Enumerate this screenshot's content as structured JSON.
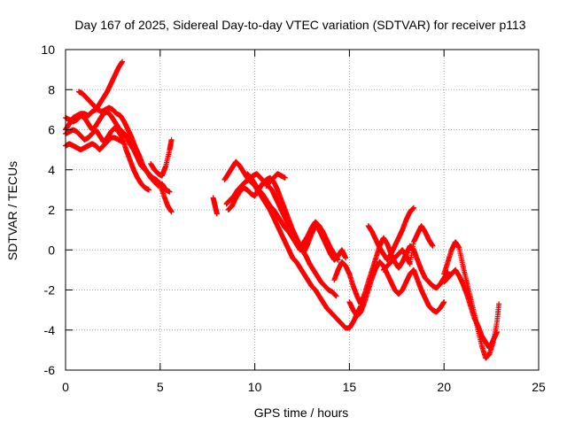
{
  "chart_data": {
    "type": "scatter",
    "title": "Day 167 of 2025, Sidereal Day-to-day VTEC variation (SDTVAR) for receiver p113",
    "xlabel": "GPS time / hours",
    "ylabel": "SDTVAR / TECUs",
    "xlim": [
      0,
      25
    ],
    "ylim": [
      -6,
      10
    ],
    "x_ticks": [
      0,
      5,
      10,
      15,
      20,
      25
    ],
    "y_ticks": [
      -6,
      -4,
      -2,
      0,
      2,
      4,
      6,
      8,
      10
    ],
    "x_tick_labels": [
      "0",
      "5",
      "10",
      "15",
      "20",
      "25"
    ],
    "y_tick_labels": [
      "-6",
      "-4",
      "-2",
      "0",
      "2",
      "4",
      "6",
      "8",
      "10"
    ],
    "grid": true,
    "marker": "+",
    "marker_color": "#ff0000",
    "series": [
      {
        "x": [
          0.0,
          0.2,
          0.4,
          0.6,
          0.8,
          1.0,
          1.2,
          1.4,
          1.6,
          1.8,
          2.0,
          2.2,
          2.4,
          2.6,
          2.8,
          3.0
        ],
        "y": [
          6.0,
          6.3,
          6.6,
          6.7,
          6.8,
          6.8,
          6.7,
          6.9,
          7.0,
          7.3,
          7.6,
          7.9,
          8.3,
          8.7,
          9.1,
          9.4
        ]
      },
      {
        "x": [
          0.7,
          0.9,
          1.1,
          1.3,
          1.5,
          1.7,
          1.9,
          2.1,
          2.3,
          2.5,
          2.7,
          2.9,
          3.1,
          3.3,
          3.5,
          3.7,
          3.9,
          4.1,
          4.3,
          4.5,
          4.7,
          4.9,
          5.1,
          5.3,
          5.5
        ],
        "y": [
          7.9,
          7.8,
          7.6,
          7.4,
          7.2,
          7.0,
          6.9,
          7.0,
          7.1,
          7.0,
          6.8,
          6.7,
          6.4,
          6.0,
          5.6,
          5.1,
          4.7,
          4.2,
          3.9,
          3.6,
          3.4,
          3.2,
          3.3,
          3.0,
          2.9
        ]
      },
      {
        "x": [
          0.0,
          0.2,
          0.4,
          0.6,
          0.8,
          1.0,
          1.2,
          1.4,
          1.6,
          1.8,
          2.0,
          2.2,
          2.4,
          2.6,
          2.8,
          3.0,
          3.2,
          3.4,
          3.6,
          3.8,
          4.0,
          4.2,
          4.4,
          4.6,
          4.8,
          5.0,
          5.2,
          5.4,
          5.6
        ],
        "y": [
          6.6,
          6.5,
          6.4,
          6.5,
          6.7,
          6.6,
          6.3,
          6.0,
          6.2,
          6.5,
          6.8,
          6.9,
          6.7,
          6.4,
          6.1,
          5.9,
          5.7,
          5.3,
          5.0,
          4.6,
          4.2,
          4.0,
          3.8,
          3.6,
          3.5,
          3.3,
          2.7,
          2.2,
          1.9
        ]
      },
      {
        "x": [
          0.0,
          0.2,
          0.4,
          0.6,
          0.8,
          1.0,
          1.2,
          1.4,
          1.6,
          1.8,
          2.0,
          2.2,
          2.4,
          2.6,
          2.8,
          3.0,
          3.2,
          3.4,
          3.6,
          3.8,
          4.0,
          4.2,
          4.4
        ],
        "y": [
          5.8,
          5.9,
          6.0,
          5.9,
          5.7,
          5.5,
          5.6,
          5.8,
          6.0,
          5.7,
          5.4,
          5.6,
          5.9,
          6.1,
          5.9,
          5.6,
          5.0,
          4.5,
          4.0,
          3.6,
          3.3,
          3.1,
          3.0
        ]
      },
      {
        "x": [
          0.0,
          0.2,
          0.4,
          0.6,
          0.8,
          1.0,
          1.2,
          1.4,
          1.6,
          1.8,
          2.0,
          2.2,
          2.4,
          2.6,
          2.8,
          3.0
        ],
        "y": [
          5.2,
          5.3,
          5.2,
          5.1,
          5.0,
          5.1,
          5.2,
          5.3,
          5.2,
          5.0,
          5.2,
          5.4,
          5.6,
          5.6,
          5.5,
          5.4
        ]
      },
      {
        "x": [
          4.5,
          4.7,
          4.9,
          5.1,
          5.3,
          5.5,
          5.6
        ],
        "y": [
          4.3,
          4.0,
          3.8,
          3.7,
          4.2,
          5.0,
          5.5
        ]
      },
      {
        "x": [
          7.8,
          7.9,
          8.0
        ],
        "y": [
          2.6,
          2.2,
          1.8
        ]
      },
      {
        "x": [
          8.4,
          8.6,
          8.8,
          9.0,
          9.2,
          9.4,
          9.6,
          9.8,
          10.0,
          10.2,
          10.4,
          10.6,
          10.8,
          11.0,
          11.2,
          11.4,
          11.6,
          11.8,
          12.0,
          12.2,
          12.4,
          12.6,
          12.8,
          13.0,
          13.2,
          13.4,
          13.6,
          13.8,
          14.0,
          14.2,
          14.4,
          14.6,
          14.8,
          15.0,
          15.2,
          15.4,
          15.6
        ],
        "y": [
          3.5,
          3.8,
          4.1,
          4.4,
          4.2,
          3.9,
          3.6,
          3.4,
          3.2,
          2.9,
          2.6,
          2.3,
          2.0,
          1.6,
          1.2,
          0.8,
          0.4,
          0.0,
          -0.4,
          -0.6,
          -0.9,
          -1.2,
          -1.5,
          -1.8,
          -2.0,
          -2.3,
          -2.6,
          -2.9,
          -3.1,
          -3.3,
          -3.5,
          -3.7,
          -3.9,
          -3.9,
          -3.6,
          -3.2,
          -2.8
        ]
      },
      {
        "x": [
          8.5,
          8.7,
          8.9,
          9.1,
          9.3,
          9.5,
          9.7,
          9.9,
          10.1,
          10.3,
          10.5,
          10.7,
          10.9,
          11.1,
          11.3,
          11.5,
          11.7,
          11.9,
          12.1,
          12.3,
          12.5,
          12.7,
          12.9,
          13.1,
          13.3,
          13.5,
          13.7,
          13.9,
          14.1,
          14.3
        ],
        "y": [
          2.3,
          2.5,
          2.7,
          3.0,
          3.2,
          3.4,
          3.5,
          3.7,
          3.8,
          3.6,
          3.4,
          3.2,
          3.0,
          2.6,
          2.2,
          1.8,
          1.4,
          1.0,
          0.6,
          0.3,
          0.0,
          -0.3,
          -0.7,
          -1.0,
          -1.3,
          -1.6,
          -1.8,
          -2.0,
          -2.1,
          -2.3
        ]
      },
      {
        "x": [
          8.6,
          8.8,
          9.0,
          9.2,
          9.4,
          9.6,
          9.8,
          10.0,
          10.2,
          10.4,
          10.6,
          10.8,
          11.0,
          11.2,
          11.4,
          11.6,
          11.8,
          12.0,
          12.2,
          12.4,
          12.6,
          12.8,
          13.0,
          13.2,
          13.4,
          13.6,
          13.8,
          14.0,
          14.2,
          14.4,
          14.6,
          14.8
        ],
        "y": [
          2.0,
          2.2,
          2.6,
          2.9,
          3.1,
          3.0,
          2.8,
          2.7,
          3.0,
          3.3,
          3.5,
          3.6,
          3.4,
          3.0,
          2.5,
          2.0,
          1.5,
          1.0,
          0.6,
          0.2,
          -0.1,
          0.3,
          0.8,
          1.2,
          1.0,
          0.6,
          0.2,
          -0.2,
          -0.5,
          -0.3,
          0.0,
          -0.4
        ]
      },
      {
        "x": [
          9.6,
          9.8,
          10.0,
          10.2,
          10.4,
          10.6,
          10.8,
          11.0,
          11.2,
          11.4,
          11.6,
          11.8,
          12.0,
          12.2,
          12.4,
          12.6,
          12.8,
          13.0,
          13.2,
          13.4,
          13.6,
          13.8,
          14.0,
          14.2,
          14.4
        ],
        "y": [
          3.8,
          3.6,
          3.3,
          3.0,
          2.8,
          2.5,
          2.2,
          2.0,
          1.7,
          1.4,
          1.1,
          0.9,
          0.6,
          0.3,
          0.0,
          0.4,
          0.7,
          1.1,
          1.4,
          1.2,
          0.9,
          0.5,
          0.1,
          -0.2,
          -0.5
        ]
      },
      {
        "x": [
          10.6,
          10.8,
          11.0,
          11.2,
          11.4,
          11.6
        ],
        "y": [
          3.2,
          3.4,
          3.6,
          3.8,
          3.7,
          3.6
        ]
      },
      {
        "x": [
          14.2,
          14.4,
          14.6,
          14.8,
          15.0,
          15.2,
          15.4,
          15.6,
          15.8,
          16.0,
          16.2,
          16.4,
          16.6,
          16.8,
          17.0,
          17.2,
          17.4,
          17.6,
          17.8,
          18.0,
          18.2,
          18.4,
          18.6,
          18.8,
          19.0,
          19.2,
          19.4,
          19.6,
          19.8,
          20.0,
          20.2
        ],
        "y": [
          -1.5,
          -1.0,
          -0.6,
          -0.8,
          -1.2,
          -1.8,
          -2.3,
          -2.7,
          -2.2,
          -1.6,
          -1.0,
          -0.4,
          0.2,
          0.6,
          0.3,
          -0.2,
          -0.6,
          -0.9,
          -0.6,
          -0.2,
          0.2,
          0.0,
          -0.5,
          -1.0,
          -1.4,
          -1.6,
          -1.8,
          -1.9,
          -1.7,
          -1.4,
          -1.1
        ]
      },
      {
        "x": [
          15.0,
          15.2,
          15.4,
          15.6,
          15.8,
          16.0,
          16.2,
          16.4,
          16.6,
          16.8,
          17.0,
          17.2,
          17.4,
          17.6,
          17.8,
          18.0,
          18.2,
          18.4,
          18.6,
          18.8,
          19.0,
          19.2,
          19.4,
          19.6,
          19.8,
          20.0
        ],
        "y": [
          -2.6,
          -3.0,
          -3.3,
          -3.1,
          -2.6,
          -2.0,
          -1.4,
          -0.9,
          -0.6,
          -0.8,
          -1.2,
          -1.6,
          -2.0,
          -2.2,
          -2.0,
          -1.6,
          -1.2,
          -1.0,
          -1.5,
          -2.0,
          -2.4,
          -2.8,
          -3.0,
          -3.1,
          -2.9,
          -2.6
        ]
      },
      {
        "x": [
          16.0,
          16.2,
          16.4,
          16.6,
          16.8,
          17.0,
          17.2,
          17.4,
          17.6,
          17.8,
          18.0,
          18.2,
          18.4
        ],
        "y": [
          1.2,
          0.9,
          0.5,
          0.1,
          -0.2,
          -0.5,
          -0.2,
          0.2,
          0.6,
          1.0,
          1.5,
          1.9,
          2.1
        ]
      },
      {
        "x": [
          16.8,
          17.0,
          17.2,
          17.4,
          17.6,
          17.8,
          18.0,
          18.2,
          18.4,
          18.6,
          18.8,
          19.0,
          19.2,
          19.4
        ],
        "y": [
          -1.0,
          -0.8,
          -0.6,
          -0.4,
          -0.2,
          0.0,
          -0.3,
          -0.7,
          0.4,
          0.8,
          1.2,
          0.9,
          0.5,
          0.2
        ]
      },
      {
        "x": [
          20.0,
          20.2,
          20.4,
          20.6,
          20.8,
          21.0,
          21.2,
          21.4,
          21.6,
          21.8,
          22.0,
          22.2,
          22.4,
          22.6,
          22.8,
          22.9
        ],
        "y": [
          -1.2,
          -0.6,
          0.0,
          0.4,
          0.1,
          -0.8,
          -1.6,
          -2.4,
          -3.2,
          -4.0,
          -4.8,
          -5.4,
          -5.2,
          -4.6,
          -3.6,
          -2.7
        ]
      },
      {
        "x": [
          20.0,
          20.2,
          20.4,
          20.6,
          20.8,
          21.0,
          21.2,
          21.4,
          21.6,
          21.8,
          22.0,
          22.2,
          22.4,
          22.6,
          22.8
        ],
        "y": [
          -1.6,
          -1.4,
          -1.2,
          -1.0,
          -1.3,
          -1.7,
          -2.2,
          -2.8,
          -3.4,
          -3.8,
          -4.3,
          -4.6,
          -4.9,
          -4.5,
          -4.1
        ]
      }
    ]
  }
}
